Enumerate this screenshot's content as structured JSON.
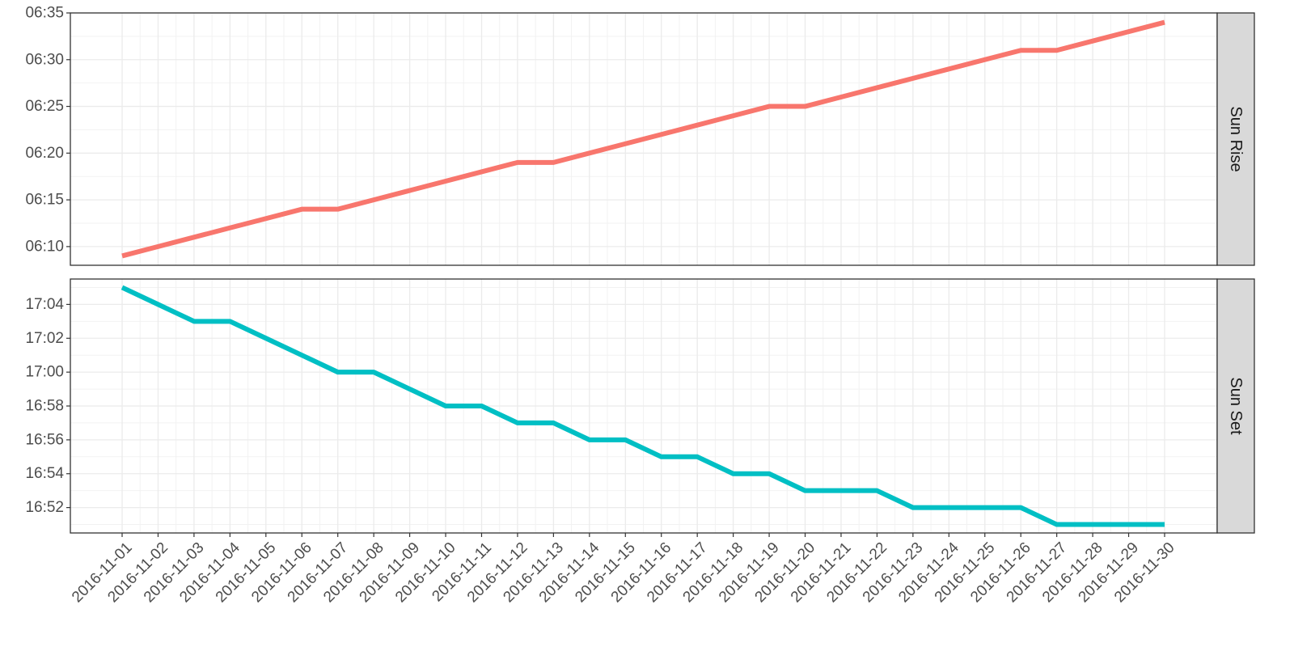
{
  "chart_data": {
    "type": "line",
    "facet": "rows",
    "grid": true,
    "x": [
      "2016-11-01",
      "2016-11-02",
      "2016-11-03",
      "2016-11-04",
      "2016-11-05",
      "2016-11-06",
      "2016-11-07",
      "2016-11-08",
      "2016-11-09",
      "2016-11-10",
      "2016-11-11",
      "2016-11-12",
      "2016-11-13",
      "2016-11-14",
      "2016-11-15",
      "2016-11-16",
      "2016-11-17",
      "2016-11-18",
      "2016-11-19",
      "2016-11-20",
      "2016-11-21",
      "2016-11-22",
      "2016-11-23",
      "2016-11-24",
      "2016-11-25",
      "2016-11-26",
      "2016-11-27",
      "2016-11-28",
      "2016-11-29",
      "2016-11-30"
    ],
    "panels": [
      {
        "strip_label": "Sun Rise",
        "color": "#F8766D",
        "ylim": [
          "06:08",
          "06:35"
        ],
        "yticks": [
          "06:10",
          "06:15",
          "06:20",
          "06:25",
          "06:30",
          "06:35"
        ],
        "values": [
          "06:09",
          "06:10",
          "06:11",
          "06:12",
          "06:13",
          "06:14",
          "06:14",
          "06:15",
          "06:16",
          "06:17",
          "06:18",
          "06:19",
          "06:19",
          "06:20",
          "06:21",
          "06:22",
          "06:23",
          "06:24",
          "06:25",
          "06:25",
          "06:26",
          "06:27",
          "06:28",
          "06:29",
          "06:30",
          "06:31",
          "06:31",
          "06:32",
          "06:33",
          "06:34"
        ]
      },
      {
        "strip_label": "Sun Set",
        "color": "#00BFC4",
        "ylim": [
          "16:50.5",
          "17:05.5"
        ],
        "yticks": [
          "16:52",
          "16:54",
          "16:56",
          "16:58",
          "17:00",
          "17:02",
          "17:04"
        ],
        "values": [
          "17:05",
          "17:04",
          "17:03",
          "17:03",
          "17:02",
          "17:01",
          "17:00",
          "17:00",
          "16:59",
          "16:58",
          "16:58",
          "16:57",
          "16:57",
          "16:56",
          "16:56",
          "16:55",
          "16:55",
          "16:54",
          "16:54",
          "16:53",
          "16:53",
          "16:53",
          "16:52",
          "16:52",
          "16:52",
          "16:52",
          "16:51",
          "16:51",
          "16:51",
          "16:51"
        ]
      }
    ]
  }
}
